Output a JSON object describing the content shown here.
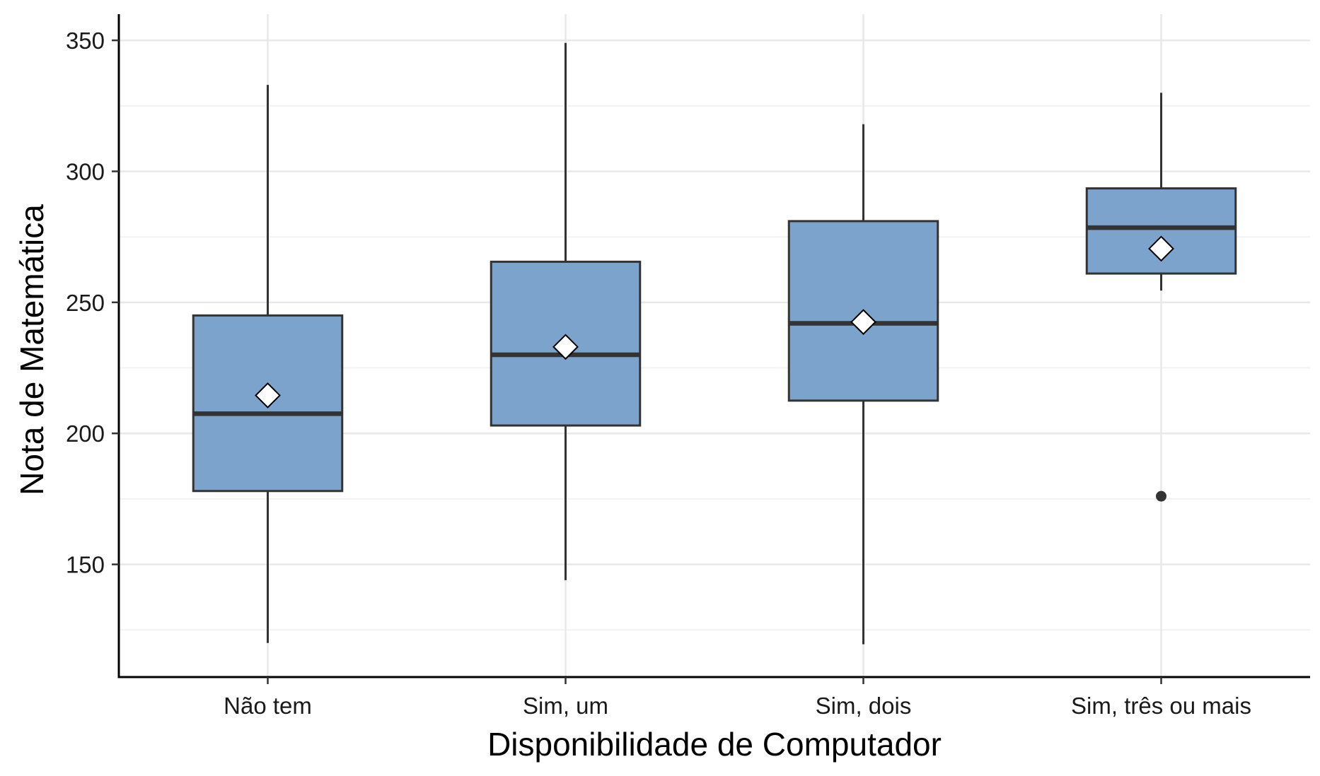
{
  "chart_data": {
    "type": "box",
    "xlabel": "Disponibilidade de Computador",
    "ylabel": "Nota de Matemática",
    "ylim": [
      107,
      360
    ],
    "yticks": [
      150,
      200,
      250,
      300,
      350
    ],
    "grid": "major-and-minor",
    "box_color": "#7BA3CB",
    "categories": [
      "Não tem",
      "Sim, um",
      "Sim, dois",
      "Sim, três ou mais"
    ],
    "boxes": [
      {
        "category": "Não tem",
        "whisker_low": 120,
        "q1": 178,
        "median": 207.5,
        "q3": 245,
        "whisker_high": 333,
        "mean": 214.5,
        "outliers": []
      },
      {
        "category": "Sim, um",
        "whisker_low": 144,
        "q1": 203,
        "median": 230,
        "q3": 265.5,
        "whisker_high": 349,
        "mean": 233,
        "outliers": []
      },
      {
        "category": "Sim, dois",
        "whisker_low": 119.5,
        "q1": 212.5,
        "median": 242,
        "q3": 281,
        "whisker_high": 318,
        "mean": 242.5,
        "outliers": []
      },
      {
        "category": "Sim, três ou mais",
        "whisker_low": 254.5,
        "q1": 261,
        "median": 278.5,
        "q3": 293.5,
        "whisker_high": 330,
        "mean": 270.5,
        "outliers": [
          176
        ]
      }
    ]
  }
}
